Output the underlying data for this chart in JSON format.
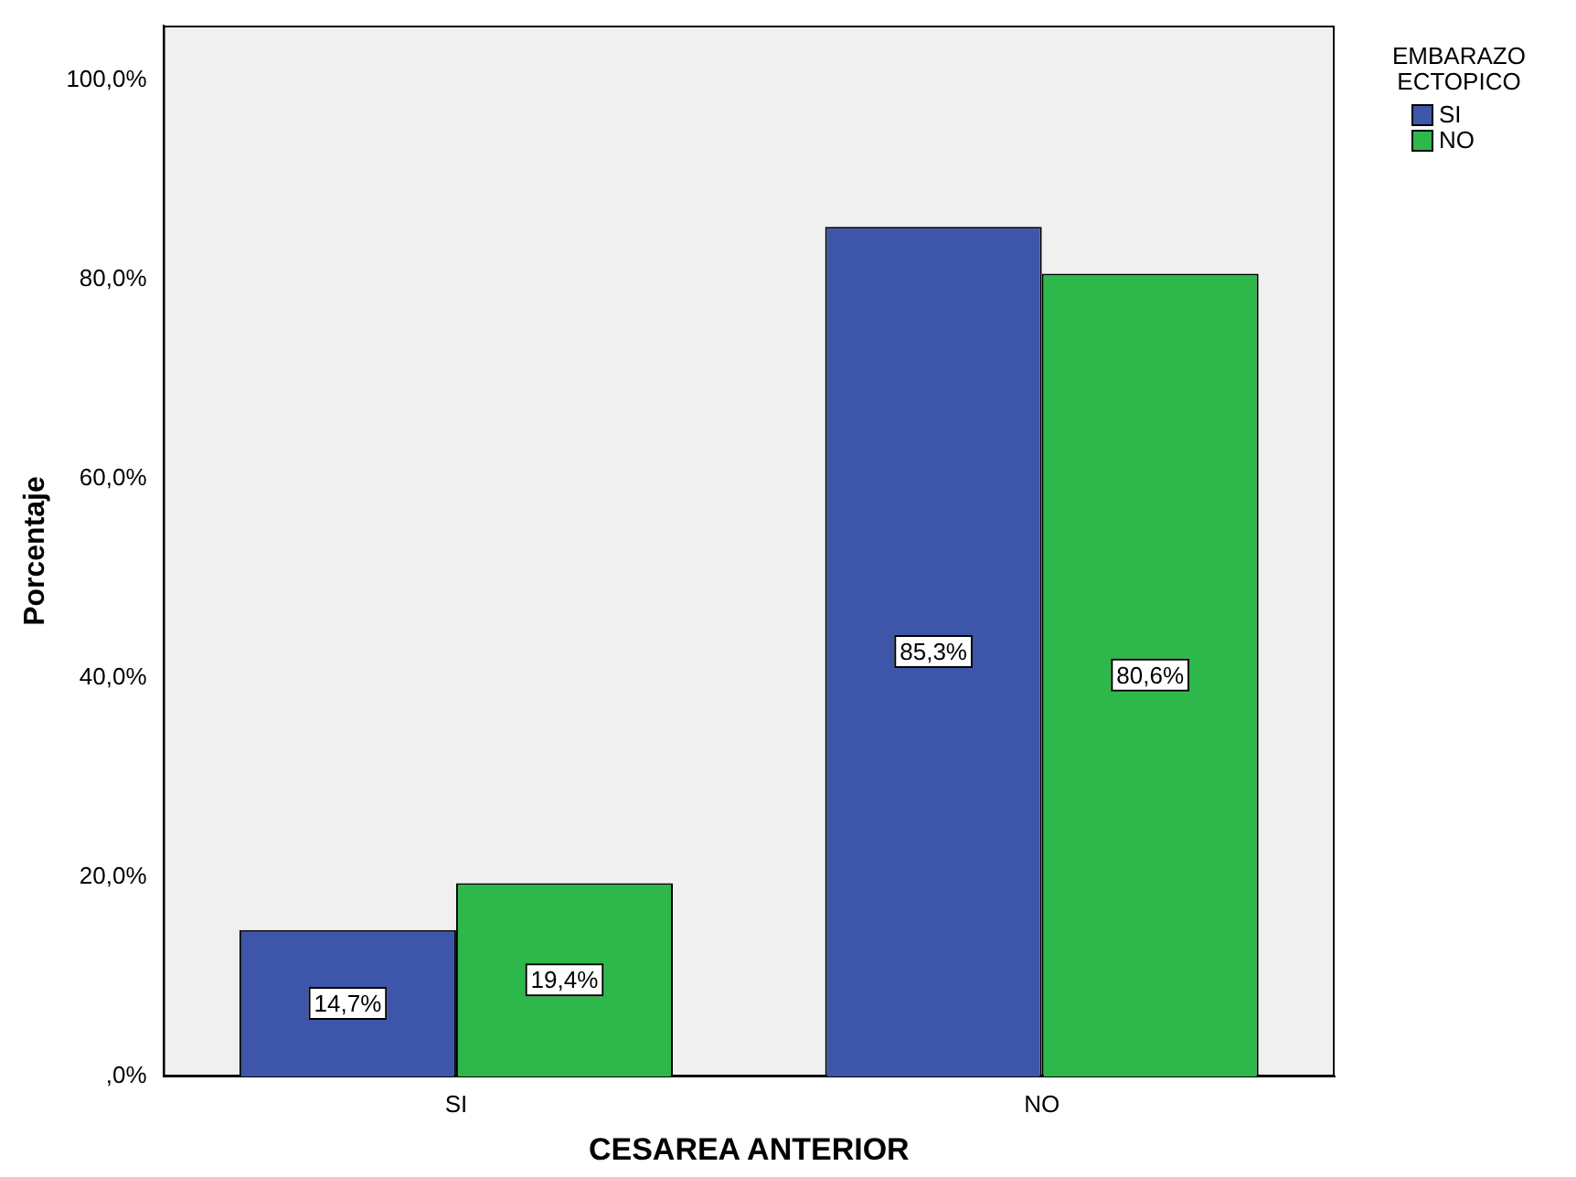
{
  "chart_data": {
    "type": "bar",
    "xlabel": "CESAREA ANTERIOR",
    "ylabel": "Porcentaje",
    "legend_title": "EMBARAZO ECTOPICO",
    "categories": [
      "SI",
      "NO"
    ],
    "series": [
      {
        "name": "SI",
        "color": "#3d56a9",
        "values": [
          14.7,
          85.3
        ],
        "value_labels": [
          "14,7%",
          "85,3%"
        ]
      },
      {
        "name": "NO",
        "color": "#2eb84b",
        "values": [
          19.4,
          80.6
        ],
        "value_labels": [
          "19,4%",
          "80,6%"
        ]
      }
    ],
    "ylim": [
      0,
      105.5
    ],
    "yticks": [
      {
        "value": 0,
        "label": ",0%"
      },
      {
        "value": 20,
        "label": "20,0%"
      },
      {
        "value": 40,
        "label": "40,0%"
      },
      {
        "value": 60,
        "label": "60,0%"
      },
      {
        "value": 80,
        "label": "80,0%"
      },
      {
        "value": 100,
        "label": "100,0%"
      }
    ],
    "grid": false,
    "legend": "top right"
  }
}
